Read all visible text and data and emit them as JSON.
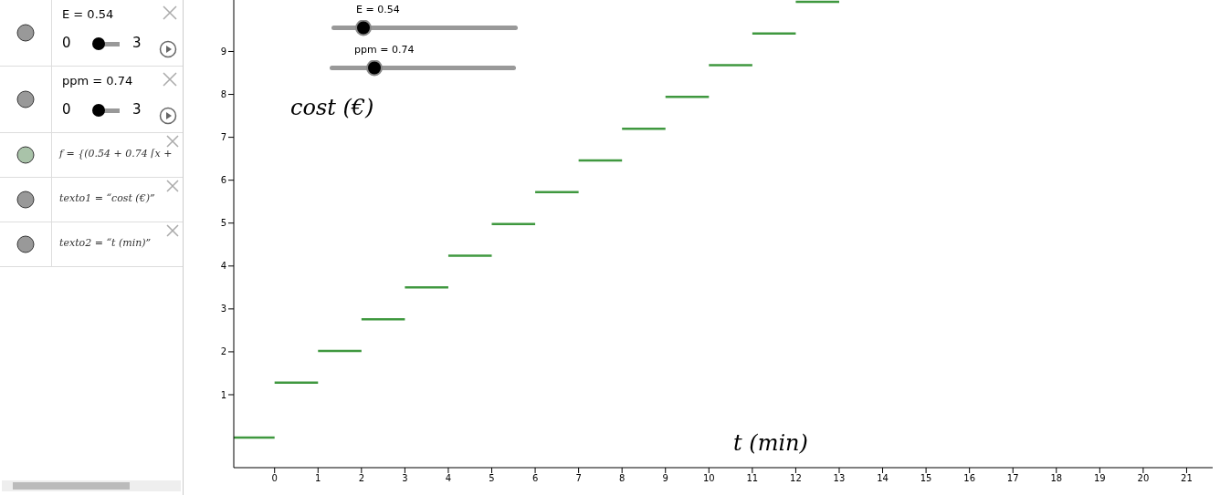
{
  "chart_data": {
    "type": "line",
    "xlabel": "t (min)",
    "ylabel": "cost (€)",
    "xlim": [
      -0.94,
      21.6
    ],
    "ylim": [
      -0.7,
      10.2
    ],
    "xticks": [
      0,
      1,
      2,
      3,
      4,
      5,
      6,
      7,
      8,
      9,
      10,
      11,
      12,
      13,
      14,
      15,
      16,
      17,
      18,
      19,
      20,
      21
    ],
    "yticks": [
      1,
      2,
      3,
      4,
      5,
      6,
      7,
      8,
      9
    ],
    "grid": false,
    "marker": "none",
    "line_style": "solid",
    "series": [
      {
        "color": "#3f983f",
        "x": [
          -0.94,
          0
        ],
        "values": [
          0,
          0
        ]
      },
      {
        "color": "#3f983f",
        "x": [
          0,
          1
        ],
        "values": [
          1.28,
          1.28
        ]
      },
      {
        "color": "#3f983f",
        "x": [
          1,
          2
        ],
        "values": [
          2.02,
          2.02
        ]
      },
      {
        "color": "#3f983f",
        "x": [
          2,
          3
        ],
        "values": [
          2.76,
          2.76
        ]
      },
      {
        "color": "#3f983f",
        "x": [
          3,
          4
        ],
        "values": [
          3.5,
          3.5
        ]
      },
      {
        "color": "#3f983f",
        "x": [
          4,
          5
        ],
        "values": [
          4.24,
          4.24
        ]
      },
      {
        "color": "#3f983f",
        "x": [
          5,
          6
        ],
        "values": [
          4.98,
          4.98
        ]
      },
      {
        "color": "#3f983f",
        "x": [
          6,
          7
        ],
        "values": [
          5.72,
          5.72
        ]
      },
      {
        "color": "#3f983f",
        "x": [
          7,
          8
        ],
        "values": [
          6.46,
          6.46
        ]
      },
      {
        "color": "#3f983f",
        "x": [
          8,
          9
        ],
        "values": [
          7.2,
          7.2
        ]
      },
      {
        "color": "#3f983f",
        "x": [
          9,
          10
        ],
        "values": [
          7.94,
          7.94
        ]
      },
      {
        "color": "#3f983f",
        "x": [
          10,
          11
        ],
        "values": [
          8.68,
          8.68
        ]
      },
      {
        "color": "#3f983f",
        "x": [
          11,
          12
        ],
        "values": [
          9.42,
          9.42
        ]
      },
      {
        "color": "#3f983f",
        "x": [
          12,
          13
        ],
        "values": [
          10.16,
          10.16
        ]
      }
    ],
    "annotations": [
      "E = 0.54",
      "0",
      "3",
      "ppm = 0.74",
      "0",
      "3",
      "f = {(0.54 + 0.74 ⌈x +",
      "texto1 = “cost (€)”",
      "texto2 = “t (min)”",
      "E = 0.54",
      "ppm = 0.74"
    ]
  }
}
